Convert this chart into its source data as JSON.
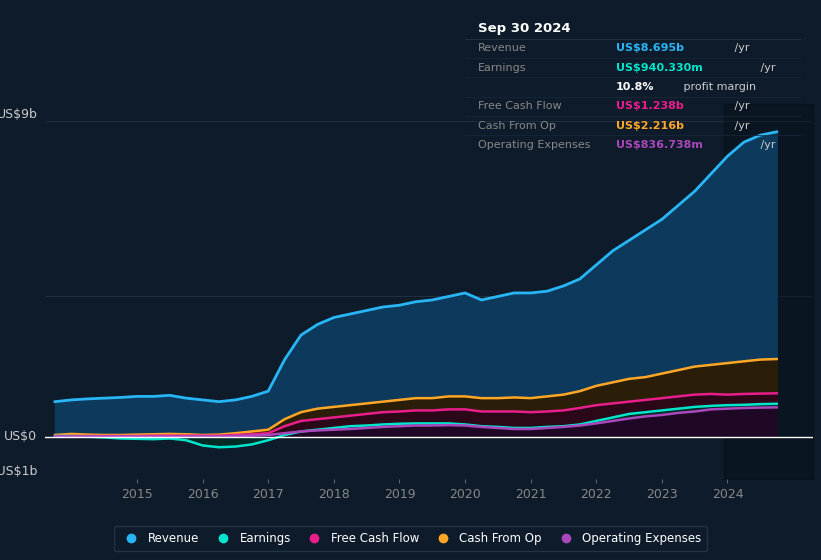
{
  "bg_color": "#0d1b2a",
  "plot_bg_color": "#0d1b2a",
  "grid_color": "#2a3a4a",
  "y_label_top": "US$9b",
  "y_label_zero": "US$0",
  "y_label_neg": "-US$1b",
  "ylim": [
    -1.2,
    9.5
  ],
  "xlim": [
    2013.6,
    2025.3
  ],
  "x_ticks": [
    2015,
    2016,
    2017,
    2018,
    2019,
    2020,
    2021,
    2022,
    2023,
    2024
  ],
  "series": {
    "Revenue": {
      "color": "#29b6f6",
      "fill_color": "#0d3a5c",
      "fill_alpha": 1.0,
      "linewidth": 2.0,
      "x": [
        2013.75,
        2014.0,
        2014.25,
        2014.5,
        2014.75,
        2015.0,
        2015.25,
        2015.5,
        2015.75,
        2016.0,
        2016.25,
        2016.5,
        2016.75,
        2017.0,
        2017.25,
        2017.5,
        2017.75,
        2018.0,
        2018.25,
        2018.5,
        2018.75,
        2019.0,
        2019.25,
        2019.5,
        2019.75,
        2020.0,
        2020.25,
        2020.5,
        2020.75,
        2021.0,
        2021.25,
        2021.5,
        2021.75,
        2022.0,
        2022.25,
        2022.5,
        2022.75,
        2023.0,
        2023.25,
        2023.5,
        2023.75,
        2024.0,
        2024.25,
        2024.5,
        2024.75
      ],
      "y": [
        1.0,
        1.05,
        1.08,
        1.1,
        1.12,
        1.15,
        1.15,
        1.18,
        1.1,
        1.05,
        1.0,
        1.05,
        1.15,
        1.3,
        2.2,
        2.9,
        3.2,
        3.4,
        3.5,
        3.6,
        3.7,
        3.75,
        3.85,
        3.9,
        4.0,
        4.1,
        3.9,
        4.0,
        4.1,
        4.1,
        4.15,
        4.3,
        4.5,
        4.9,
        5.3,
        5.6,
        5.9,
        6.2,
        6.6,
        7.0,
        7.5,
        8.0,
        8.4,
        8.6,
        8.695
      ]
    },
    "CashFromOp": {
      "color": "#ffa726",
      "fill_color": "#2a1e08",
      "fill_alpha": 1.0,
      "linewidth": 1.8,
      "x": [
        2013.75,
        2014.0,
        2014.25,
        2014.5,
        2014.75,
        2015.0,
        2015.25,
        2015.5,
        2015.75,
        2016.0,
        2016.25,
        2016.5,
        2016.75,
        2017.0,
        2017.25,
        2017.5,
        2017.75,
        2018.0,
        2018.25,
        2018.5,
        2018.75,
        2019.0,
        2019.25,
        2019.5,
        2019.75,
        2020.0,
        2020.25,
        2020.5,
        2020.75,
        2021.0,
        2021.25,
        2021.5,
        2021.75,
        2022.0,
        2022.25,
        2022.5,
        2022.75,
        2023.0,
        2023.25,
        2023.5,
        2023.75,
        2024.0,
        2024.25,
        2024.5,
        2024.75
      ],
      "y": [
        0.05,
        0.08,
        0.06,
        0.05,
        0.05,
        0.06,
        0.07,
        0.08,
        0.07,
        0.05,
        0.06,
        0.1,
        0.15,
        0.2,
        0.5,
        0.7,
        0.8,
        0.85,
        0.9,
        0.95,
        1.0,
        1.05,
        1.1,
        1.1,
        1.15,
        1.15,
        1.1,
        1.1,
        1.12,
        1.1,
        1.15,
        1.2,
        1.3,
        1.45,
        1.55,
        1.65,
        1.7,
        1.8,
        1.9,
        2.0,
        2.05,
        2.1,
        2.15,
        2.2,
        2.216
      ]
    },
    "FreeCashFlow": {
      "color": "#e91e8c",
      "fill_color": "#2a0818",
      "fill_alpha": 1.0,
      "linewidth": 1.8,
      "x": [
        2013.75,
        2014.0,
        2014.25,
        2014.5,
        2014.75,
        2015.0,
        2015.25,
        2015.5,
        2015.75,
        2016.0,
        2016.25,
        2016.5,
        2016.75,
        2017.0,
        2017.25,
        2017.5,
        2017.75,
        2018.0,
        2018.25,
        2018.5,
        2018.75,
        2019.0,
        2019.25,
        2019.5,
        2019.75,
        2020.0,
        2020.25,
        2020.5,
        2020.75,
        2021.0,
        2021.25,
        2021.5,
        2021.75,
        2022.0,
        2022.25,
        2022.5,
        2022.75,
        2023.0,
        2023.25,
        2023.5,
        2023.75,
        2024.0,
        2024.25,
        2024.5,
        2024.75
      ],
      "y": [
        0.02,
        0.02,
        0.02,
        0.02,
        0.02,
        0.02,
        0.03,
        0.03,
        0.03,
        0.03,
        0.03,
        0.05,
        0.07,
        0.1,
        0.3,
        0.45,
        0.5,
        0.55,
        0.6,
        0.65,
        0.7,
        0.72,
        0.75,
        0.75,
        0.78,
        0.78,
        0.72,
        0.72,
        0.72,
        0.7,
        0.72,
        0.75,
        0.82,
        0.9,
        0.95,
        1.0,
        1.05,
        1.1,
        1.15,
        1.2,
        1.22,
        1.2,
        1.22,
        1.23,
        1.238
      ]
    },
    "Earnings": {
      "color": "#00e5cc",
      "fill_color": "#002a24",
      "fill_alpha": 1.0,
      "linewidth": 1.8,
      "x": [
        2013.75,
        2014.0,
        2014.25,
        2014.5,
        2014.75,
        2015.0,
        2015.25,
        2015.5,
        2015.75,
        2016.0,
        2016.25,
        2016.5,
        2016.75,
        2017.0,
        2017.25,
        2017.5,
        2017.75,
        2018.0,
        2018.25,
        2018.5,
        2018.75,
        2019.0,
        2019.25,
        2019.5,
        2019.75,
        2020.0,
        2020.25,
        2020.5,
        2020.75,
        2021.0,
        2021.25,
        2021.5,
        2021.75,
        2022.0,
        2022.25,
        2022.5,
        2022.75,
        2023.0,
        2023.25,
        2023.5,
        2023.75,
        2024.0,
        2024.25,
        2024.5,
        2024.75
      ],
      "y": [
        0.02,
        0.02,
        0.0,
        -0.02,
        -0.05,
        -0.06,
        -0.07,
        -0.05,
        -0.1,
        -0.25,
        -0.3,
        -0.28,
        -0.22,
        -0.1,
        0.05,
        0.15,
        0.2,
        0.25,
        0.3,
        0.32,
        0.35,
        0.37,
        0.38,
        0.38,
        0.38,
        0.35,
        0.3,
        0.28,
        0.25,
        0.25,
        0.28,
        0.3,
        0.35,
        0.45,
        0.55,
        0.65,
        0.7,
        0.75,
        0.8,
        0.85,
        0.88,
        0.9,
        0.91,
        0.93,
        0.94
      ]
    },
    "OperatingExpenses": {
      "color": "#ab47bc",
      "fill_color": "#1e0826",
      "fill_alpha": 1.0,
      "linewidth": 1.8,
      "x": [
        2013.75,
        2014.0,
        2014.25,
        2014.5,
        2014.75,
        2015.0,
        2015.25,
        2015.5,
        2015.75,
        2016.0,
        2016.25,
        2016.5,
        2016.75,
        2017.0,
        2017.25,
        2017.5,
        2017.75,
        2018.0,
        2018.25,
        2018.5,
        2018.75,
        2019.0,
        2019.25,
        2019.5,
        2019.75,
        2020.0,
        2020.25,
        2020.5,
        2020.75,
        2021.0,
        2021.25,
        2021.5,
        2021.75,
        2022.0,
        2022.25,
        2022.5,
        2022.75,
        2023.0,
        2023.25,
        2023.5,
        2023.75,
        2024.0,
        2024.25,
        2024.5,
        2024.75
      ],
      "y": [
        0.01,
        0.01,
        0.01,
        0.01,
        0.01,
        0.01,
        0.01,
        0.01,
        0.01,
        0.01,
        0.01,
        0.02,
        0.03,
        0.05,
        0.1,
        0.15,
        0.18,
        0.2,
        0.22,
        0.25,
        0.28,
        0.3,
        0.32,
        0.32,
        0.33,
        0.32,
        0.28,
        0.25,
        0.22,
        0.22,
        0.25,
        0.28,
        0.32,
        0.38,
        0.45,
        0.52,
        0.58,
        0.62,
        0.68,
        0.72,
        0.78,
        0.8,
        0.82,
        0.83,
        0.837
      ]
    }
  },
  "info_box": {
    "title": "Sep 30 2024",
    "rows": [
      {
        "label": "Revenue",
        "value": "US$8.695b",
        "value_color": "#29b6f6",
        "suffix": " /yr"
      },
      {
        "label": "Earnings",
        "value": "US$940.330m",
        "value_color": "#00e5cc",
        "suffix": " /yr"
      },
      {
        "label": "",
        "value": "10.8%",
        "value_color": "#ffffff",
        "suffix": " profit margin"
      },
      {
        "label": "Free Cash Flow",
        "value": "US$1.238b",
        "value_color": "#e91e8c",
        "suffix": " /yr"
      },
      {
        "label": "Cash From Op",
        "value": "US$2.216b",
        "value_color": "#ffa726",
        "suffix": " /yr"
      },
      {
        "label": "Operating Expenses",
        "value": "US$836.738m",
        "value_color": "#ab47bc",
        "suffix": " /yr"
      }
    ]
  },
  "legend": [
    {
      "label": "Revenue",
      "color": "#29b6f6"
    },
    {
      "label": "Earnings",
      "color": "#00e5cc"
    },
    {
      "label": "Free Cash Flow",
      "color": "#e91e8c"
    },
    {
      "label": "Cash From Op",
      "color": "#ffa726"
    },
    {
      "label": "Operating Expenses",
      "color": "#ab47bc"
    }
  ]
}
